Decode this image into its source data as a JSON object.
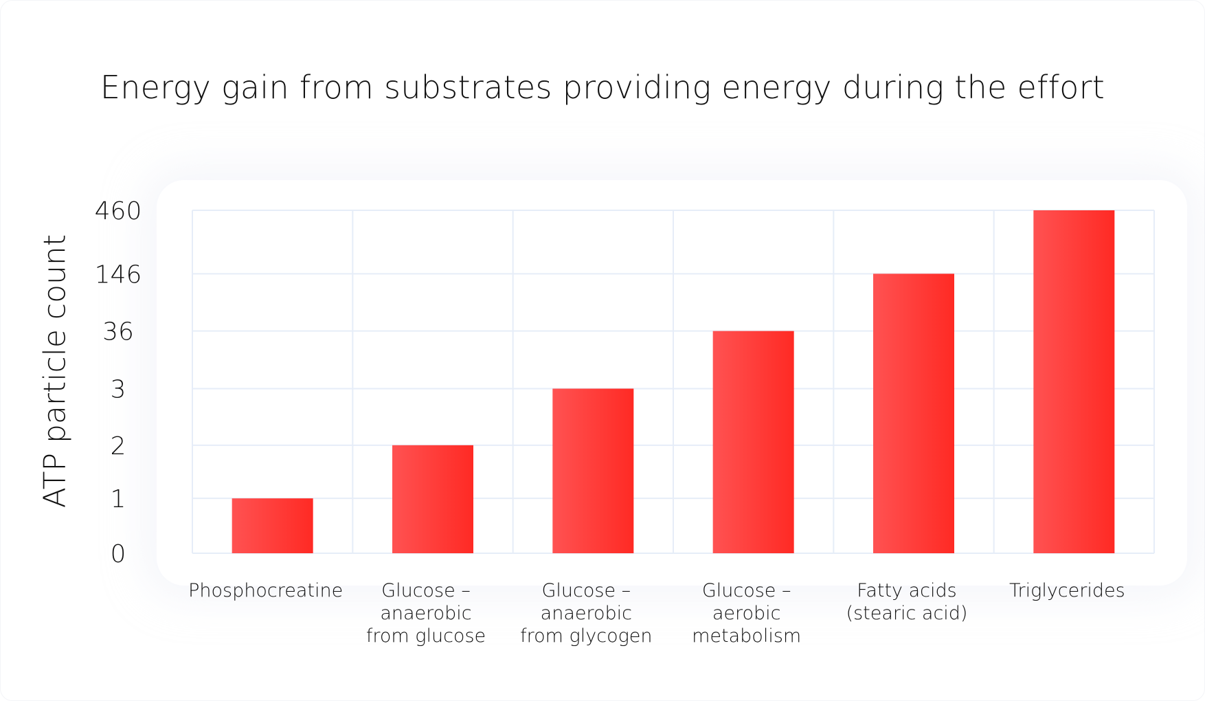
{
  "chart_data": {
    "type": "bar",
    "title": "Energy gain from substrates providing energy during the effort",
    "xlabel": "",
    "ylabel": "ATP particle count",
    "categories": [
      "Phosphocreatine",
      "Glucose – anaerobic from glucose",
      "Glucose – anaerobic from glycogen",
      "Glucose – aerobic metabolism",
      "Fatty acids (stearic acid)",
      "Triglycerides"
    ],
    "category_lines": [
      [
        "Phosphocreatine"
      ],
      [
        "Glucose –",
        "anaerobic",
        "from glucose"
      ],
      [
        "Glucose –",
        "anaerobic",
        "from glycogen"
      ],
      [
        "Glucose –",
        "aerobic",
        "metabolism"
      ],
      [
        "Fatty acids",
        "(stearic acid)"
      ],
      [
        "Triglycerides"
      ]
    ],
    "values": [
      1,
      2,
      3,
      36,
      146,
      460
    ],
    "yticks": [
      0,
      1,
      2,
      3,
      36,
      146,
      460
    ],
    "ylim": [
      0,
      460
    ],
    "yscale": "categorical-ordinal",
    "grid": true,
    "legend": "none",
    "colors": {
      "bar_start": "#ff5252",
      "bar_end": "#ff2a24",
      "grid": "#e6edf8",
      "text": "#111111"
    }
  }
}
